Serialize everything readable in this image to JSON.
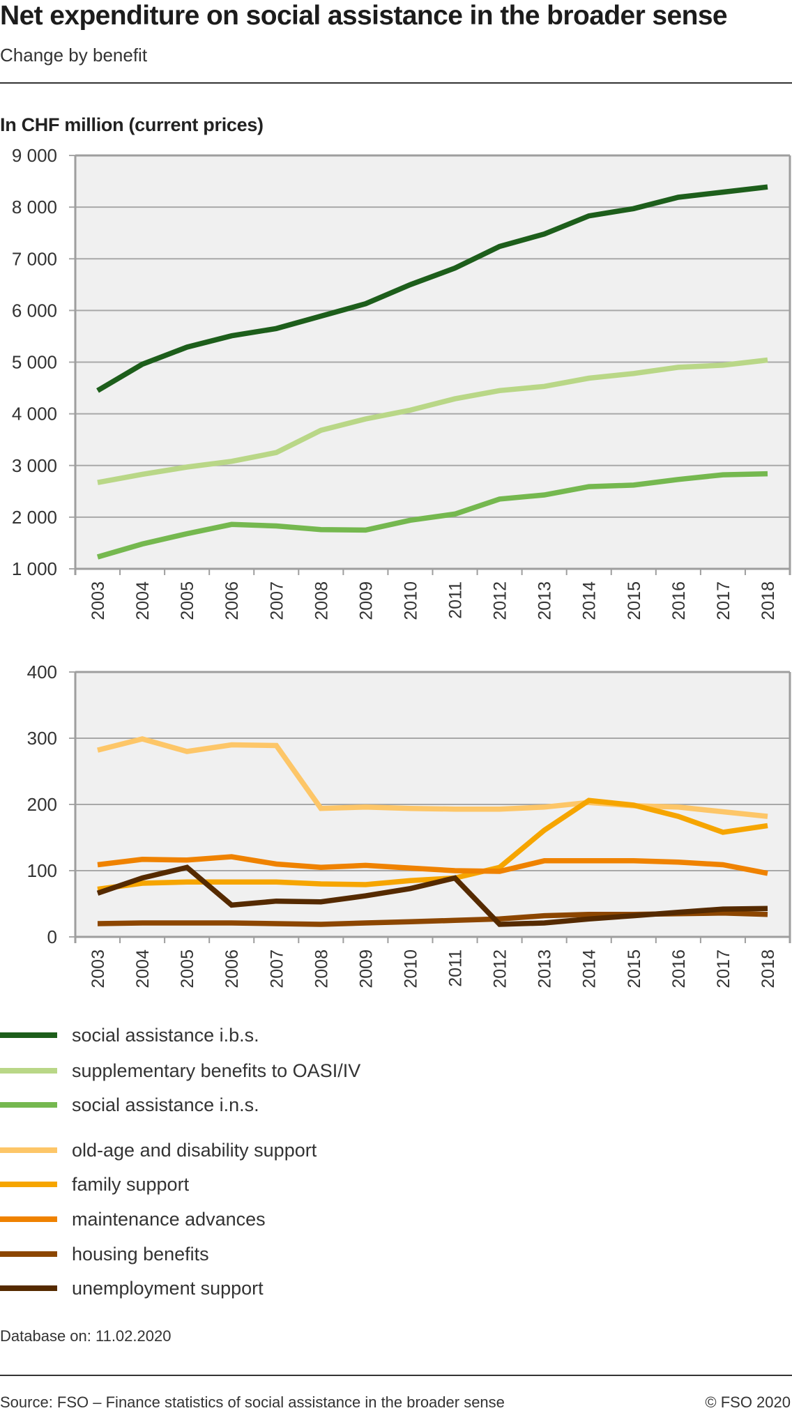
{
  "header": {
    "title": "Net expenditure on social assistance in the broader sense",
    "subtitle": "Change by benefit",
    "unit_label": "In CHF million (current prices)"
  },
  "colors": {
    "plot_background": "#f0f0f0",
    "axis": "#9e9e9e",
    "grid": "#a8a8a8"
  },
  "chart_data": [
    {
      "type": "line",
      "title": "Net expenditure on social assistance in the broader sense",
      "subtitle": "Change by benefit",
      "ylabel": "In CHF million (current prices)",
      "xlabel": "",
      "x": [
        "2003",
        "2004",
        "2005",
        "2006",
        "2007",
        "2008",
        "2009",
        "2010",
        "2011",
        "2012",
        "2013",
        "2014",
        "2015",
        "2016",
        "2017",
        "2018"
      ],
      "ylim": [
        1000,
        9000
      ],
      "yticks": [
        1000,
        2000,
        3000,
        4000,
        5000,
        6000,
        7000,
        8000,
        9000
      ],
      "ytick_labels": [
        "1 000",
        "2 000",
        "3 000",
        "4 000",
        "5 000",
        "6 000",
        "7 000",
        "8 000",
        "9 000"
      ],
      "grid": true,
      "series": [
        {
          "name": "social assistance i.b.s.",
          "color": "#1d5e1b",
          "values": [
            4450,
            4960,
            5290,
            5510,
            5650,
            5890,
            6130,
            6500,
            6820,
            7240,
            7480,
            7830,
            7970,
            8190,
            8290,
            8390
          ]
        },
        {
          "name": "supplementary benefits to OASI/IV",
          "color": "#b9d787",
          "values": [
            2670,
            2830,
            2970,
            3080,
            3250,
            3680,
            3900,
            4070,
            4290,
            4450,
            4530,
            4690,
            4780,
            4900,
            4940,
            5040
          ]
        },
        {
          "name": "social assistance i.n.s.",
          "color": "#75b84f",
          "values": [
            1230,
            1480,
            1680,
            1860,
            1830,
            1760,
            1750,
            1940,
            2060,
            2350,
            2430,
            2590,
            2620,
            2730,
            2820,
            2840
          ]
        }
      ]
    },
    {
      "type": "line",
      "title": "",
      "ylabel": "In CHF million (current prices)",
      "xlabel": "",
      "x": [
        "2003",
        "2004",
        "2005",
        "2006",
        "2007",
        "2008",
        "2009",
        "2010",
        "2011",
        "2012",
        "2013",
        "2014",
        "2015",
        "2016",
        "2017",
        "2018"
      ],
      "ylim": [
        0,
        400
      ],
      "yticks": [
        0,
        100,
        200,
        300,
        400
      ],
      "ytick_labels": [
        "0",
        "100",
        "200",
        "300",
        "400"
      ],
      "grid": true,
      "series": [
        {
          "name": "old-age and disability support",
          "color": "#fdc668",
          "values": [
            282,
            299,
            280,
            290,
            289,
            194,
            196,
            194,
            193,
            193,
            196,
            203,
            198,
            196,
            189,
            182
          ]
        },
        {
          "name": "family support",
          "color": "#f6a500",
          "values": [
            72,
            81,
            83,
            83,
            83,
            80,
            79,
            85,
            89,
            105,
            161,
            206,
            199,
            182,
            158,
            168
          ]
        },
        {
          "name": "maintenance advances",
          "color": "#ef8200",
          "values": [
            109,
            117,
            116,
            121,
            110,
            105,
            108,
            104,
            100,
            99,
            115,
            115,
            115,
            113,
            109,
            96
          ]
        },
        {
          "name": "housing benefits",
          "color": "#8c4600",
          "values": [
            20,
            21,
            21,
            21,
            20,
            19,
            21,
            23,
            25,
            27,
            32,
            34,
            34,
            35,
            36,
            34
          ]
        },
        {
          "name": "unemployment support",
          "color": "#552a00",
          "values": [
            66,
            89,
            105,
            48,
            54,
            53,
            62,
            73,
            89,
            19,
            21,
            27,
            32,
            37,
            42,
            43
          ]
        }
      ]
    }
  ],
  "legend": {
    "groups": [
      [
        {
          "label": "social assistance i.b.s.",
          "color": "#1d5e1b"
        },
        {
          "label": "supplementary benefits to OASI/IV",
          "color": "#b9d787"
        },
        {
          "label": "social assistance i.n.s.",
          "color": "#75b84f"
        }
      ],
      [
        {
          "label": "old-age and disability support",
          "color": "#fdc668"
        },
        {
          "label": "family support",
          "color": "#f6a500"
        },
        {
          "label": "maintenance advances",
          "color": "#ef8200"
        },
        {
          "label": "housing benefits",
          "color": "#8c4600"
        },
        {
          "label": "unemployment support",
          "color": "#552a00"
        }
      ]
    ]
  },
  "footer": {
    "database": "Database on: 11.02.2020",
    "source": "Source: FSO – Finance statistics of social assistance in the broader sense",
    "copyright": "© FSO 2020"
  }
}
